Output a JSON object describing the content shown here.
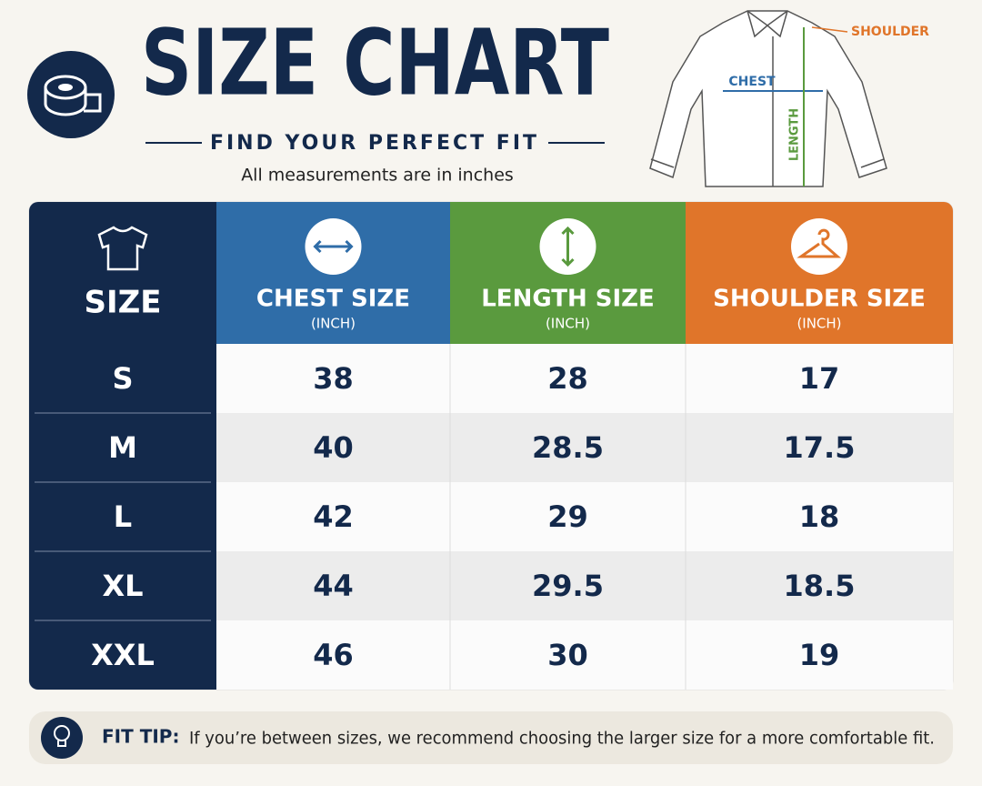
{
  "header": {
    "title": "SIZE CHART",
    "subtitle": "FIND YOUR PERFECT FIT",
    "note": "All measurements are in inches"
  },
  "diagram": {
    "shoulder": "SHOULDER",
    "chest": "CHEST",
    "length": "LENGTH"
  },
  "table": {
    "columns": [
      {
        "title": "SIZE"
      },
      {
        "title": "CHEST SIZE",
        "unit": "(INCH)"
      },
      {
        "title": "LENGTH SIZE",
        "unit": "(INCH)"
      },
      {
        "title": "SHOULDER SIZE",
        "unit": "(INCH)"
      }
    ],
    "rows": [
      [
        "S",
        "38",
        "28",
        "17"
      ],
      [
        "M",
        "40",
        "28.5",
        "17.5"
      ],
      [
        "L",
        "42",
        "29",
        "18"
      ],
      [
        "XL",
        "44",
        "29.5",
        "18.5"
      ],
      [
        "XXL",
        "46",
        "30",
        "19"
      ]
    ]
  },
  "tip": {
    "label": "FIT TIP:",
    "text": "If you’re between sizes, we recommend choosing the larger size for a more comfortable fit."
  }
}
